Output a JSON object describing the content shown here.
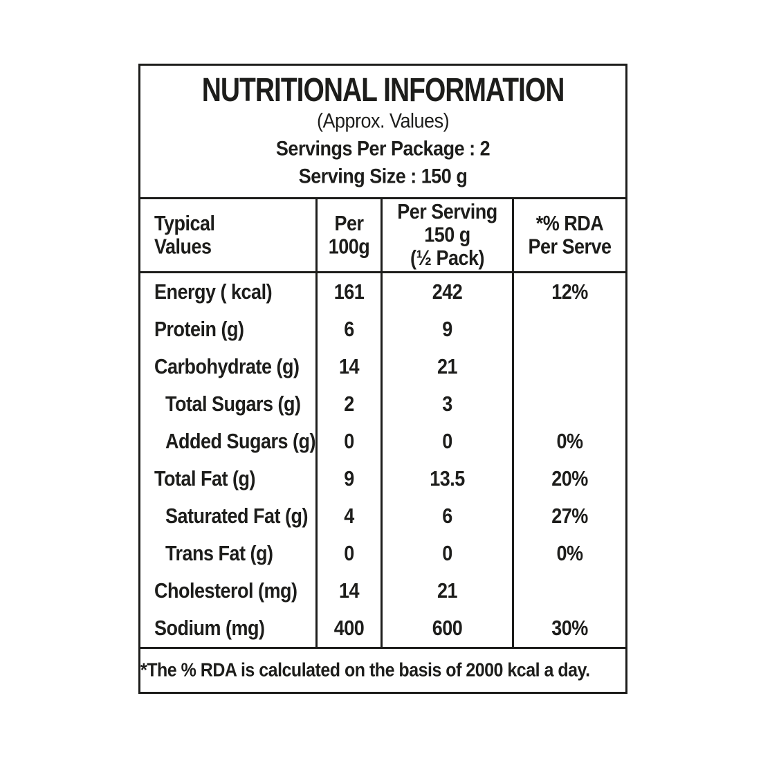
{
  "colors": {
    "ink": "#1d1d1b",
    "background": "#ffffff"
  },
  "header": {
    "title": "NUTRITIONAL INFORMATION",
    "subtitle": "(Approx. Values)",
    "servings_per_package": "Servings Per Package : 2",
    "serving_size": "Serving Size : 150 g"
  },
  "table": {
    "columns": [
      {
        "lines": [
          "Typical",
          "Values"
        ]
      },
      {
        "lines": [
          "Per",
          "100g"
        ]
      },
      {
        "lines": [
          "Per Serving",
          "150 g",
          "(½ Pack)"
        ]
      },
      {
        "lines": [
          "*% RDA",
          "Per Serve"
        ]
      }
    ],
    "rows": [
      {
        "label": "Energy ( kcal)",
        "indent": false,
        "per_100g": "161",
        "per_serving": "242",
        "rda": "12%"
      },
      {
        "label": "Protein (g)",
        "indent": false,
        "per_100g": "6",
        "per_serving": "9",
        "rda": ""
      },
      {
        "label": "Carbohydrate (g)",
        "indent": false,
        "per_100g": "14",
        "per_serving": "21",
        "rda": ""
      },
      {
        "label": "Total Sugars (g)",
        "indent": true,
        "per_100g": "2",
        "per_serving": "3",
        "rda": ""
      },
      {
        "label": "Added Sugars (g)",
        "indent": true,
        "per_100g": "0",
        "per_serving": "0",
        "rda": "0%"
      },
      {
        "label": "Total Fat (g)",
        "indent": false,
        "per_100g": "9",
        "per_serving": "13.5",
        "rda": "20%"
      },
      {
        "label": "Saturated Fat (g)",
        "indent": true,
        "per_100g": "4",
        "per_serving": "6",
        "rda": "27%"
      },
      {
        "label": "Trans Fat (g)",
        "indent": true,
        "per_100g": "0",
        "per_serving": "0",
        "rda": "0%"
      },
      {
        "label": "Cholesterol (mg)",
        "indent": false,
        "per_100g": "14",
        "per_serving": "21",
        "rda": ""
      },
      {
        "label": "Sodium (mg)",
        "indent": false,
        "per_100g": "400",
        "per_serving": "600",
        "rda": "30%"
      }
    ]
  },
  "footnote": "*The % RDA is calculated on the basis of 2000 kcal a day."
}
